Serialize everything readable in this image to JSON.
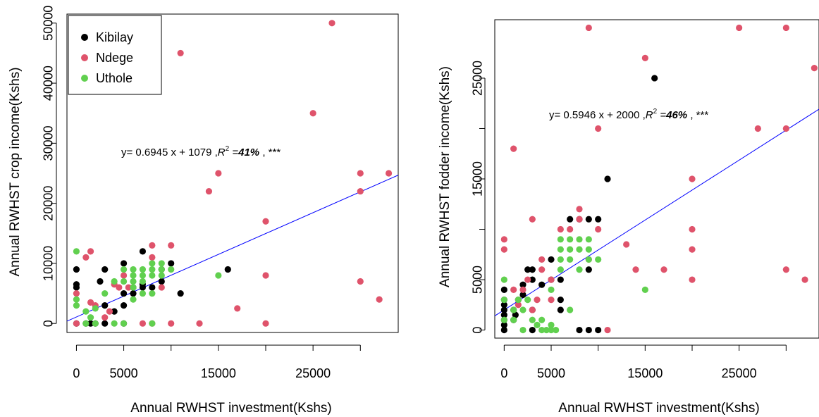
{
  "chart_data": [
    {
      "type": "scatter",
      "xlabel": "Annual RWHST investment(Kshs)",
      "ylabel": "Annual RWHST crop income(Kshs)",
      "xlim": [
        -1000,
        34000
      ],
      "ylim": [
        -1500,
        51500
      ],
      "xticks": [
        0,
        5000,
        15000,
        25000
      ],
      "xticks_unlabeled": [
        10000,
        20000,
        30000
      ],
      "yticks": [
        0,
        10000,
        20000,
        30000,
        40000,
        50000
      ],
      "legend": {
        "position": "top-left",
        "entries": [
          {
            "name": "Kibilay",
            "color": "#000000"
          },
          {
            "name": "Ndege",
            "color": "#DF536B"
          },
          {
            "name": "Uthole",
            "color": "#61D04F"
          }
        ]
      },
      "annotation": {
        "prefix": "y= 0.6945 x + 1079 ,",
        "r2_label": "R",
        "r2_sup": "2",
        "r2_eq": " =",
        "r2_value": "41%",
        "suffix": " , ***"
      },
      "fit": {
        "slope": 0.6945,
        "intercept": 1079,
        "color": "#0000FF"
      },
      "series": [
        {
          "name": "Kibilay",
          "color": "#000000",
          "points": [
            [
              0,
              0
            ],
            [
              0,
              6000
            ],
            [
              0,
              6500
            ],
            [
              0,
              9000
            ],
            [
              1000,
              0
            ],
            [
              1500,
              0
            ],
            [
              2000,
              0
            ],
            [
              2500,
              7000
            ],
            [
              3000,
              3000
            ],
            [
              3000,
              9000
            ],
            [
              3000,
              0
            ],
            [
              4000,
              2000
            ],
            [
              5000,
              0
            ],
            [
              5000,
              3000
            ],
            [
              5000,
              5000
            ],
            [
              5000,
              10000
            ],
            [
              6000,
              5000
            ],
            [
              6000,
              6000
            ],
            [
              7000,
              12000
            ],
            [
              7000,
              6000
            ],
            [
              7000,
              6500
            ],
            [
              8000,
              6000
            ],
            [
              9000,
              7000
            ],
            [
              9000,
              9000
            ],
            [
              10000,
              10000
            ],
            [
              11000,
              5000
            ],
            [
              16000,
              9000
            ]
          ]
        },
        {
          "name": "Ndege",
          "color": "#DF536B",
          "points": [
            [
              0,
              5000
            ],
            [
              0,
              0
            ],
            [
              1000,
              11000
            ],
            [
              1500,
              12000
            ],
            [
              1500,
              3500
            ],
            [
              2000,
              3000
            ],
            [
              3000,
              1000
            ],
            [
              3500,
              2000
            ],
            [
              4000,
              6500
            ],
            [
              4500,
              6000
            ],
            [
              5000,
              8000
            ],
            [
              5500,
              6000
            ],
            [
              7000,
              0
            ],
            [
              8000,
              13000
            ],
            [
              8000,
              11000
            ],
            [
              8000,
              0
            ],
            [
              9000,
              6000
            ],
            [
              10000,
              13000
            ],
            [
              10000,
              0
            ],
            [
              11000,
              45000
            ],
            [
              13000,
              0
            ],
            [
              14000,
              22000
            ],
            [
              15000,
              25000
            ],
            [
              17000,
              2500
            ],
            [
              20000,
              17000
            ],
            [
              20000,
              8000
            ],
            [
              20000,
              0
            ],
            [
              25000,
              35000
            ],
            [
              27000,
              50000
            ],
            [
              30000,
              25000
            ],
            [
              30000,
              22000
            ],
            [
              30000,
              7000
            ],
            [
              32000,
              4000
            ],
            [
              33000,
              25000
            ]
          ]
        },
        {
          "name": "Uthole",
          "color": "#61D04F",
          "points": [
            [
              0,
              12000
            ],
            [
              0,
              4000
            ],
            [
              0,
              3000
            ],
            [
              1000,
              2000
            ],
            [
              1000,
              0
            ],
            [
              1500,
              1000
            ],
            [
              2000,
              0
            ],
            [
              2000,
              2500
            ],
            [
              3000,
              5000
            ],
            [
              4000,
              7000
            ],
            [
              4000,
              0
            ],
            [
              5000,
              9000
            ],
            [
              5000,
              7000
            ],
            [
              5000,
              0
            ],
            [
              6000,
              9000
            ],
            [
              6000,
              8000
            ],
            [
              6000,
              7000
            ],
            [
              6000,
              6000
            ],
            [
              6000,
              4000
            ],
            [
              7000,
              9000
            ],
            [
              7000,
              8000
            ],
            [
              7000,
              7000
            ],
            [
              7000,
              5000
            ],
            [
              8000,
              10000
            ],
            [
              8000,
              9000
            ],
            [
              8000,
              8000
            ],
            [
              8000,
              5000
            ],
            [
              8000,
              0
            ],
            [
              9000,
              10000
            ],
            [
              9000,
              9000
            ],
            [
              9000,
              8000
            ],
            [
              10000,
              9000
            ],
            [
              15000,
              8000
            ]
          ]
        }
      ]
    },
    {
      "type": "scatter",
      "xlabel": "Annual RWHST investment(Kshs)",
      "ylabel": "Annual RWHST fodder income(Kshs)",
      "xlim": [
        -1000,
        33500
      ],
      "ylim": [
        -800,
        30800
      ],
      "xticks": [
        0,
        5000,
        15000,
        25000
      ],
      "xticks_unlabeled": [
        10000,
        20000,
        30000
      ],
      "yticks": [
        0,
        5000,
        15000,
        25000
      ],
      "yticks_unlabeled": [
        10000,
        20000
      ],
      "annotation": {
        "prefix": "y= 0.5946 x + 2000 ,",
        "r2_label": "R",
        "r2_sup": "2",
        "r2_eq": " =",
        "r2_value": "46%",
        "suffix": " , ***"
      },
      "fit": {
        "slope": 0.5946,
        "intercept": 2000,
        "color": "#0000FF"
      },
      "series": [
        {
          "name": "Kibilay",
          "color": "#000000",
          "points": [
            [
              0,
              0
            ],
            [
              0,
              500
            ],
            [
              0,
              1000
            ],
            [
              0,
              1500
            ],
            [
              0,
              2000
            ],
            [
              0,
              2500
            ],
            [
              0,
              3000
            ],
            [
              0,
              4000
            ],
            [
              1000,
              2000
            ],
            [
              1000,
              1000
            ],
            [
              1200,
              1500
            ],
            [
              1500,
              3000
            ],
            [
              2000,
              3500
            ],
            [
              2000,
              4500
            ],
            [
              2500,
              6000
            ],
            [
              3000,
              6000
            ],
            [
              3000,
              5000
            ],
            [
              3000,
              2000
            ],
            [
              3000,
              0
            ],
            [
              4000,
              4500
            ],
            [
              5000,
              7000
            ],
            [
              5000,
              5000
            ],
            [
              6000,
              5000
            ],
            [
              6000,
              3000
            ],
            [
              6000,
              2000
            ],
            [
              7000,
              11000
            ],
            [
              8000,
              11000
            ],
            [
              9000,
              11000
            ],
            [
              9000,
              6000
            ],
            [
              9000,
              0
            ],
            [
              10000,
              11000
            ],
            [
              10000,
              0
            ],
            [
              11000,
              15000
            ],
            [
              16000,
              25000
            ],
            [
              8000,
              0
            ]
          ]
        },
        {
          "name": "Ndege",
          "color": "#DF536B",
          "points": [
            [
              0,
              9000
            ],
            [
              0,
              8000
            ],
            [
              1000,
              4000
            ],
            [
              1000,
              18000
            ],
            [
              1500,
              2500
            ],
            [
              2000,
              4000
            ],
            [
              2500,
              5000
            ],
            [
              3000,
              11000
            ],
            [
              3000,
              2000
            ],
            [
              3500,
              3000
            ],
            [
              4000,
              7000
            ],
            [
              4000,
              6000
            ],
            [
              5000,
              5000
            ],
            [
              5000,
              3000
            ],
            [
              6000,
              10000
            ],
            [
              7000,
              10000
            ],
            [
              8000,
              12000
            ],
            [
              8000,
              11000
            ],
            [
              9000,
              30000
            ],
            [
              9000,
              7000
            ],
            [
              10000,
              20000
            ],
            [
              10000,
              10000
            ],
            [
              11000,
              0
            ],
            [
              13000,
              8500
            ],
            [
              14000,
              6000
            ],
            [
              15000,
              27000
            ],
            [
              17000,
              6000
            ],
            [
              20000,
              15000
            ],
            [
              20000,
              10000
            ],
            [
              20000,
              8000
            ],
            [
              20000,
              5000
            ],
            [
              25000,
              30000
            ],
            [
              27000,
              20000
            ],
            [
              30000,
              30000
            ],
            [
              30000,
              20000
            ],
            [
              30000,
              6000
            ],
            [
              32000,
              5000
            ],
            [
              33000,
              26000
            ]
          ]
        },
        {
          "name": "Uthole",
          "color": "#61D04F",
          "points": [
            [
              0,
              5000
            ],
            [
              0,
              3000
            ],
            [
              0,
              1000
            ],
            [
              1000,
              1000
            ],
            [
              1000,
              2000
            ],
            [
              1500,
              3000
            ],
            [
              2000,
              2000
            ],
            [
              2000,
              0
            ],
            [
              2500,
              3000
            ],
            [
              3000,
              1000
            ],
            [
              3500,
              500
            ],
            [
              4000,
              1000
            ],
            [
              4000,
              0
            ],
            [
              4500,
              0
            ],
            [
              5000,
              500
            ],
            [
              5000,
              0
            ],
            [
              5000,
              4000
            ],
            [
              5500,
              0
            ],
            [
              6000,
              9000
            ],
            [
              6000,
              8000
            ],
            [
              6000,
              7000
            ],
            [
              6000,
              6000
            ],
            [
              7000,
              9000
            ],
            [
              7000,
              8000
            ],
            [
              7000,
              7000
            ],
            [
              7000,
              2000
            ],
            [
              8000,
              9000
            ],
            [
              8000,
              8000
            ],
            [
              8000,
              6000
            ],
            [
              9000,
              9000
            ],
            [
              9000,
              8000
            ],
            [
              9000,
              7000
            ],
            [
              10000,
              7000
            ],
            [
              15000,
              4000
            ]
          ]
        }
      ]
    }
  ]
}
